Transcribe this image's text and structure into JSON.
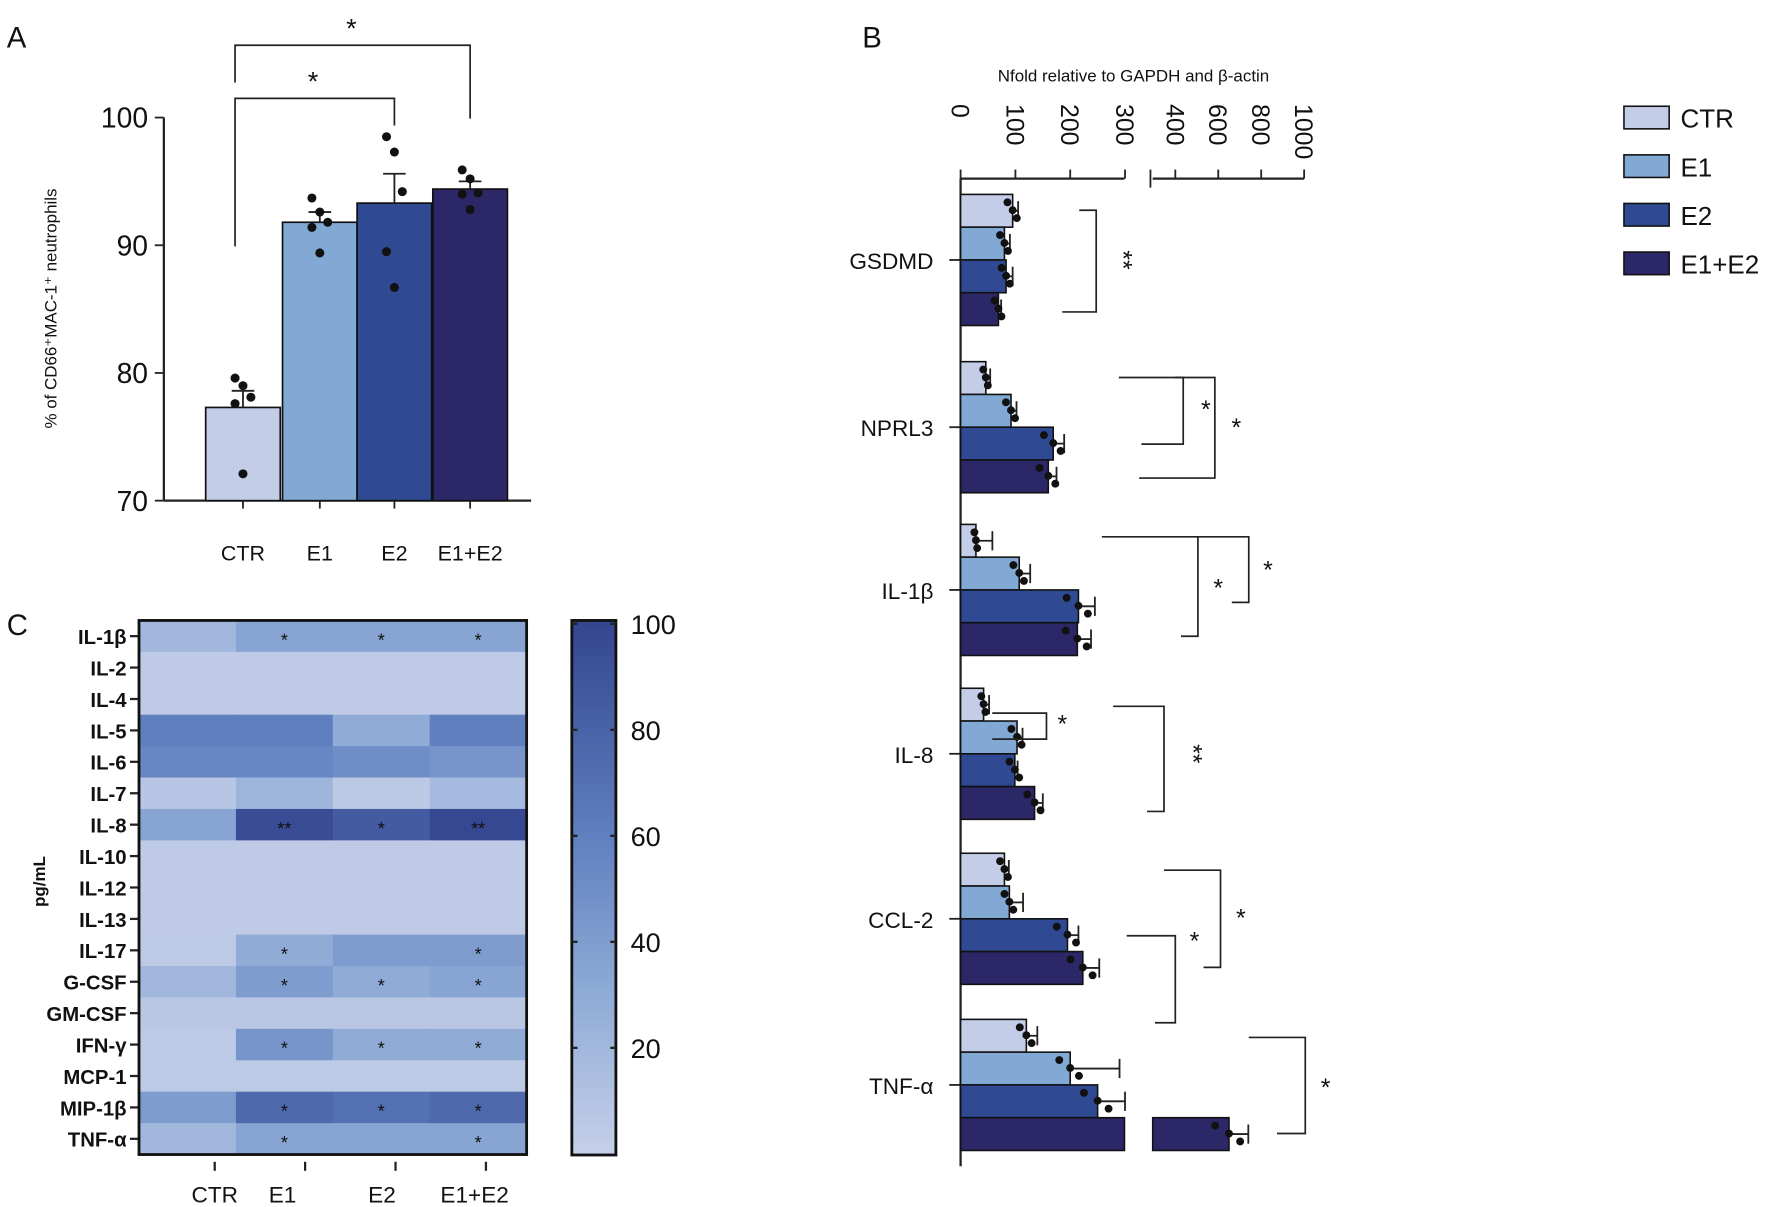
{
  "colors": {
    "CTR": "#c3cde8",
    "E1": "#82a9d4",
    "E2": "#2f4a93",
    "E1+E2": "#2c2766"
  },
  "legend": {
    "placement": "top-right",
    "items": [
      "CTR",
      "E1",
      "E2",
      "E1+E2"
    ]
  },
  "chart_data": [
    {
      "panel": "A",
      "type": "bar",
      "categories": [
        "CTR",
        "E1",
        "E2",
        "E1+E2"
      ],
      "values": [
        77.3,
        91.8,
        93.3,
        94.4
      ],
      "errors": [
        1.3,
        0.8,
        2.3,
        0.6
      ],
      "points": [
        [
          79.6,
          79.0,
          78.1,
          77.6,
          72.1
        ],
        [
          93.7,
          92.6,
          91.8,
          91.4,
          89.4
        ],
        [
          98.5,
          97.3,
          94.2,
          89.5,
          86.7
        ],
        [
          95.9,
          95.2,
          94.1,
          94.0,
          92.8
        ]
      ],
      "ylabel": "% of CD66⁺MAC-1⁺ neutrophils",
      "ylim": [
        70,
        100
      ],
      "yticks": [
        "70",
        "80",
        "90",
        "100"
      ],
      "significance": [
        {
          "from": "CTR",
          "to": "E2",
          "label": "*"
        },
        {
          "from": "CTR",
          "to": "E1+E2",
          "label": "*"
        }
      ]
    },
    {
      "panel": "B",
      "type": "bar",
      "orientation": "horizontal",
      "title": "Nfold relative to GAPDH and β-actin",
      "categories": [
        "GSDMD",
        "NPRL3",
        "IL-1β",
        "IL-8",
        "CCL-2",
        "TNF-α"
      ],
      "xticks": [
        "0",
        "100",
        "200",
        "300",
        "400",
        "600",
        "800",
        "1000"
      ],
      "axis_break": [
        300,
        400
      ],
      "series": [
        {
          "name": "CTR",
          "values": [
            95,
            46,
            28,
            42,
            80,
            120
          ],
          "errors": [
            10,
            8,
            30,
            10,
            8,
            20
          ]
        },
        {
          "name": "E1",
          "values": [
            80,
            92,
            107,
            103,
            89,
            200
          ],
          "errors": [
            10,
            10,
            20,
            10,
            25,
            90
          ]
        },
        {
          "name": "E2",
          "values": [
            83,
            169,
            215,
            99,
            195,
            250
          ],
          "errors": [
            12,
            20,
            30,
            5,
            20,
            50
          ]
        },
        {
          "name": "E1+E2",
          "values": [
            69,
            160,
            213,
            135,
            223,
            650
          ],
          "errors": [
            5,
            15,
            25,
            15,
            30,
            90
          ]
        }
      ],
      "significance": [
        {
          "category": "GSDMD",
          "label": "**"
        },
        {
          "category": "NPRL3",
          "label": "*"
        },
        {
          "category": "NPRL3",
          "label": "*"
        },
        {
          "category": "IL-1β",
          "label": "*"
        },
        {
          "category": "IL-1β",
          "label": "*"
        },
        {
          "category": "IL-8",
          "label": "*"
        },
        {
          "category": "IL-8",
          "label": "**"
        },
        {
          "category": "CCL-2",
          "label": "*"
        },
        {
          "category": "CCL-2",
          "label": "*"
        },
        {
          "category": "TNF-α",
          "label": "*"
        }
      ]
    },
    {
      "panel": "C",
      "type": "heatmap",
      "ylabel": "pg/mL",
      "columns": [
        "CTR",
        "E1",
        "E2",
        "E1+E2"
      ],
      "rows": [
        "IL-1β",
        "IL-2",
        "IL-4",
        "IL-5",
        "IL-6",
        "IL-7",
        "IL-8",
        "IL-10",
        "IL-12",
        "IL-13",
        "IL-17",
        "G-CSF",
        "GM-CSF",
        "IFN-γ",
        "MCP-1",
        "MIP-1β",
        "TNF-α"
      ],
      "values": [
        [
          20,
          35,
          35,
          35
        ],
        [
          4,
          4,
          4,
          4
        ],
        [
          4,
          4,
          4,
          4
        ],
        [
          60,
          60,
          30,
          60
        ],
        [
          55,
          55,
          50,
          45
        ],
        [
          8,
          22,
          6,
          18
        ],
        [
          35,
          95,
          85,
          98
        ],
        [
          4,
          4,
          4,
          4
        ],
        [
          4,
          4,
          4,
          4
        ],
        [
          4,
          4,
          4,
          4
        ],
        [
          5,
          30,
          40,
          40
        ],
        [
          20,
          40,
          30,
          35
        ],
        [
          7,
          7,
          7,
          7
        ],
        [
          5,
          45,
          30,
          30
        ],
        [
          5,
          5,
          5,
          5
        ],
        [
          40,
          75,
          70,
          75
        ],
        [
          20,
          35,
          35,
          35
        ]
      ],
      "stars": [
        [
          "",
          "*",
          "*",
          "*"
        ],
        [
          "",
          "",
          "",
          ""
        ],
        [
          "",
          "",
          "",
          ""
        ],
        [
          "",
          "",
          "",
          ""
        ],
        [
          "",
          "",
          "",
          ""
        ],
        [
          "",
          "",
          "",
          ""
        ],
        [
          "",
          "**",
          "*",
          "**"
        ],
        [
          "",
          "",
          "",
          ""
        ],
        [
          "",
          "",
          "",
          ""
        ],
        [
          "",
          "",
          "",
          ""
        ],
        [
          "",
          "*",
          "",
          "*"
        ],
        [
          "",
          "*",
          "*",
          "*"
        ],
        [
          "",
          "",
          "",
          ""
        ],
        [
          "",
          "*",
          "*",
          "*"
        ],
        [
          "",
          "",
          "",
          ""
        ],
        [
          "",
          "*",
          "*",
          "*"
        ],
        [
          "",
          "*",
          "",
          "*"
        ]
      ],
      "colorbar": {
        "range": [
          0,
          100
        ],
        "ticks": [
          "20",
          "40",
          "60",
          "80",
          "100"
        ]
      }
    }
  ],
  "panel_labels": [
    "A",
    "B",
    "C"
  ]
}
